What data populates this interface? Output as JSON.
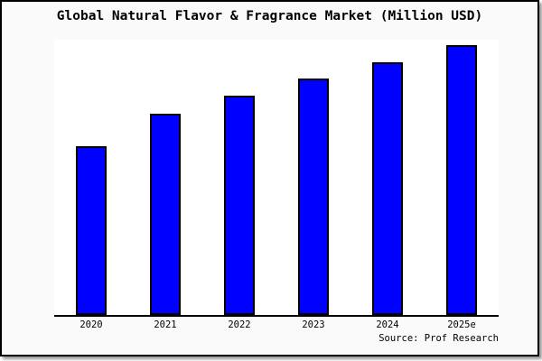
{
  "title": "Global Natural Flavor & Fragrance Market (Million USD)",
  "source_caption": "Source: Prof Research",
  "colors": {
    "bar_fill": "#0000ff",
    "bar_border": "#000000",
    "axis": "#000000",
    "plot_background": "#ffffff",
    "page_background": "#fafafa",
    "frame_border": "#000000"
  },
  "chart_data": {
    "type": "bar",
    "title": "Global Natural Flavor & Fragrance Market (Million USD)",
    "categories": [
      "2020",
      "2021",
      "2022",
      "2023",
      "2024",
      "2025e"
    ],
    "values": [
      62.5,
      74.5,
      81.3,
      87.6,
      93.6,
      100
    ],
    "value_note": "No numeric y-axis is shown in the chart; values are bar heights relative to the tallest bar (2025e = 100)",
    "xlabel": "",
    "ylabel": "",
    "ylim": [
      0,
      102
    ],
    "grid": false,
    "legend": false,
    "source_caption": "Source: Prof Research"
  }
}
